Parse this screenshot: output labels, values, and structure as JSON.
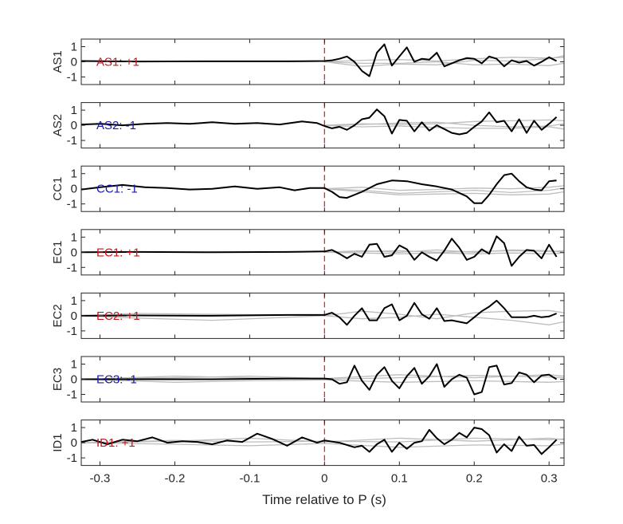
{
  "chart_data": {
    "type": "line",
    "layout": "stacked-subplots",
    "xlabel": "Time relative to P (s)",
    "xlim": [
      -0.325,
      0.32
    ],
    "ylim": [
      -1.5,
      1.5
    ],
    "x_ticks": [
      -0.3,
      -0.2,
      -0.1,
      0,
      0.1,
      0.2,
      0.3
    ],
    "x_tick_labels": [
      "-0.3",
      "-0.2",
      "-0.1",
      "0",
      "0.1",
      "0.2",
      "0.3"
    ],
    "y_ticks": [
      1,
      0,
      -1
    ],
    "y_tick_labels": [
      "1",
      "0",
      "-1"
    ],
    "marker_x": 0,
    "colors": {
      "black_trace": "#000000",
      "gray_traces": "#bdbdbd",
      "marker_line": "#e8282b",
      "positive_label": "#c0171f",
      "negative_label": "#1a1aa6",
      "axes": "#262626"
    },
    "panels": [
      {
        "ylabel": "AS1",
        "annotation": "AS1: +1",
        "polarity": "+1",
        "x": [
          -0.325,
          -0.25,
          -0.15,
          -0.05,
          0,
          0.01,
          0.02,
          0.03,
          0.04,
          0.05,
          0.06,
          0.07,
          0.08,
          0.09,
          0.1,
          0.11,
          0.12,
          0.13,
          0.14,
          0.15,
          0.16,
          0.17,
          0.18,
          0.19,
          0.2,
          0.21,
          0.22,
          0.23,
          0.24,
          0.25,
          0.26,
          0.27,
          0.28,
          0.29,
          0.3,
          0.31
        ],
        "black": [
          0.05,
          0.02,
          0.03,
          0.03,
          0.05,
          0.1,
          0.2,
          0.35,
          0.0,
          -0.6,
          -0.95,
          0.6,
          1.15,
          -0.25,
          0.35,
          0.95,
          0.0,
          0.2,
          0.15,
          0.6,
          -0.3,
          -0.1,
          0.1,
          0.25,
          0.2,
          -0.1,
          0.35,
          0.2,
          -0.3,
          0.1,
          -0.05,
          0.05,
          -0.25,
          0.0,
          0.3,
          0.05
        ],
        "gray": [
          {
            "x": [
              0.0,
              0.05,
              0.1,
              0.15,
              0.2,
              0.25,
              0.3,
              0.32
            ],
            "y": [
              0.0,
              0.1,
              0.15,
              0.05,
              0.2,
              0.3,
              0.25,
              0.3
            ]
          },
          {
            "x": [
              0.0,
              0.05,
              0.1,
              0.15,
              0.2,
              0.25,
              0.3,
              0.32
            ],
            "y": [
              0.0,
              -0.1,
              -0.1,
              0.0,
              -0.2,
              -0.15,
              -0.25,
              -0.1
            ]
          },
          {
            "x": [
              0.0,
              0.05,
              0.1,
              0.15,
              0.2,
              0.25,
              0.3,
              0.32
            ],
            "y": [
              0.0,
              -0.3,
              -0.15,
              -0.2,
              0.1,
              0.05,
              0.2,
              0.4
            ]
          }
        ]
      },
      {
        "ylabel": "AS2",
        "annotation": "AS2: -1",
        "polarity": "-1",
        "x": [
          -0.325,
          -0.3,
          -0.27,
          -0.24,
          -0.21,
          -0.18,
          -0.15,
          -0.12,
          -0.09,
          -0.06,
          -0.03,
          -0.01,
          0,
          0.01,
          0.02,
          0.03,
          0.04,
          0.05,
          0.06,
          0.07,
          0.08,
          0.09,
          0.1,
          0.11,
          0.12,
          0.13,
          0.14,
          0.15,
          0.16,
          0.17,
          0.18,
          0.19,
          0.2,
          0.21,
          0.22,
          0.23,
          0.24,
          0.25,
          0.26,
          0.27,
          0.28,
          0.29,
          0.3,
          0.31
        ],
        "black": [
          0.05,
          0.1,
          0.0,
          0.1,
          0.15,
          0.1,
          0.2,
          0.1,
          0.15,
          0.05,
          0.25,
          0.15,
          -0.05,
          -0.2,
          -0.1,
          -0.3,
          0.0,
          0.4,
          0.5,
          1.05,
          0.6,
          -0.55,
          0.35,
          0.3,
          -0.4,
          0.2,
          -0.35,
          0.0,
          -0.25,
          -0.5,
          -0.6,
          -0.5,
          -0.1,
          0.25,
          0.85,
          0.2,
          0.3,
          -0.4,
          0.4,
          -0.5,
          0.3,
          -0.3,
          0.1,
          0.55
        ],
        "gray": [
          {
            "x": [
              0.0,
              0.05,
              0.1,
              0.15,
              0.2,
              0.25,
              0.3,
              0.32
            ],
            "y": [
              0.0,
              0.05,
              0.15,
              0.2,
              0.0,
              -0.1,
              -0.05,
              0.1
            ]
          },
          {
            "x": [
              0.0,
              0.05,
              0.1,
              0.15,
              0.2,
              0.25,
              0.3,
              0.32
            ],
            "y": [
              0.0,
              -0.1,
              -0.05,
              -0.15,
              -0.2,
              -0.2,
              -0.1,
              -0.25
            ]
          },
          {
            "x": [
              0.0,
              0.05,
              0.1,
              0.15,
              0.2,
              0.25,
              0.3,
              0.32
            ],
            "y": [
              0.0,
              0.1,
              0.05,
              0.1,
              0.25,
              0.3,
              0.35,
              0.3
            ]
          }
        ]
      },
      {
        "ylabel": "CC1",
        "annotation": "CC1: -1",
        "polarity": "-1",
        "x": [
          -0.325,
          -0.3,
          -0.27,
          -0.24,
          -0.21,
          -0.18,
          -0.15,
          -0.12,
          -0.09,
          -0.06,
          -0.04,
          -0.02,
          0,
          0.01,
          0.02,
          0.03,
          0.05,
          0.07,
          0.09,
          0.11,
          0.13,
          0.15,
          0.17,
          0.19,
          0.2,
          0.21,
          0.22,
          0.23,
          0.24,
          0.25,
          0.26,
          0.27,
          0.28,
          0.29,
          0.3,
          0.31
        ],
        "black": [
          -0.05,
          0.1,
          0.25,
          0.1,
          0.05,
          -0.05,
          0.0,
          0.15,
          0.0,
          0.1,
          -0.1,
          0.05,
          0.05,
          -0.2,
          -0.55,
          -0.6,
          -0.2,
          0.3,
          0.55,
          0.5,
          0.3,
          0.15,
          -0.05,
          -0.5,
          -0.95,
          -0.95,
          -0.4,
          0.3,
          0.9,
          1.0,
          0.5,
          0.1,
          -0.05,
          -0.1,
          0.5,
          0.55
        ],
        "gray": [
          {
            "x": [
              0.0,
              0.05,
              0.1,
              0.15,
              0.2,
              0.25,
              0.3,
              0.32
            ],
            "y": [
              0.0,
              -0.1,
              -0.3,
              -0.2,
              -0.1,
              -0.25,
              -0.1,
              0.05
            ]
          },
          {
            "x": [
              0.0,
              0.05,
              0.1,
              0.15,
              0.2,
              0.25,
              0.3,
              0.32
            ],
            "y": [
              0.0,
              -0.2,
              -0.4,
              -0.35,
              -0.3,
              -0.4,
              -0.35,
              -0.2
            ]
          },
          {
            "x": [
              0.0,
              0.05,
              0.1,
              0.15,
              0.2,
              0.25,
              0.3,
              0.32
            ],
            "y": [
              0.0,
              0.1,
              -0.1,
              -0.05,
              0.05,
              0.0,
              0.1,
              0.2
            ]
          }
        ]
      },
      {
        "ylabel": "EC1",
        "annotation": "EC1: +1",
        "polarity": "+1",
        "x": [
          -0.325,
          -0.25,
          -0.15,
          -0.05,
          0,
          0.01,
          0.02,
          0.03,
          0.04,
          0.05,
          0.06,
          0.07,
          0.08,
          0.09,
          0.1,
          0.11,
          0.12,
          0.13,
          0.14,
          0.15,
          0.16,
          0.17,
          0.18,
          0.19,
          0.2,
          0.21,
          0.22,
          0.23,
          0.24,
          0.25,
          0.26,
          0.27,
          0.28,
          0.29,
          0.3,
          0.31
        ],
        "black": [
          0.0,
          0.02,
          0.0,
          0.02,
          0.05,
          0.15,
          -0.1,
          -0.4,
          -0.1,
          -0.3,
          0.5,
          0.55,
          -0.3,
          -0.2,
          0.45,
          0.2,
          -0.5,
          0.0,
          -0.3,
          -0.55,
          0.1,
          0.9,
          0.3,
          -0.5,
          -0.3,
          0.2,
          -0.1,
          1.05,
          0.6,
          -0.9,
          -0.3,
          0.15,
          0.1,
          -0.4,
          0.5,
          -0.3
        ],
        "gray": [
          {
            "x": [
              0.0,
              0.05,
              0.1,
              0.15,
              0.2,
              0.25,
              0.3,
              0.32
            ],
            "y": [
              0.0,
              0.05,
              0.1,
              0.0,
              0.05,
              0.1,
              0.05,
              0.1
            ]
          },
          {
            "x": [
              0.0,
              0.05,
              0.1,
              0.15,
              0.2,
              0.25,
              0.3,
              0.32
            ],
            "y": [
              0.0,
              -0.05,
              -0.1,
              -0.05,
              -0.1,
              -0.05,
              -0.1,
              -0.05
            ]
          },
          {
            "x": [
              0.0,
              0.05,
              0.1,
              0.15,
              0.2,
              0.25,
              0.3,
              0.32
            ],
            "y": [
              0.0,
              0.1,
              0.0,
              0.15,
              0.0,
              0.15,
              0.1,
              0.0
            ]
          }
        ]
      },
      {
        "ylabel": "EC2",
        "annotation": "EC2: +1",
        "polarity": "+1",
        "x": [
          -0.325,
          -0.25,
          -0.15,
          -0.05,
          0,
          0.01,
          0.02,
          0.03,
          0.04,
          0.05,
          0.06,
          0.07,
          0.08,
          0.09,
          0.1,
          0.11,
          0.12,
          0.13,
          0.14,
          0.15,
          0.16,
          0.17,
          0.18,
          0.19,
          0.2,
          0.21,
          0.22,
          0.23,
          0.24,
          0.25,
          0.26,
          0.27,
          0.28,
          0.29,
          0.3,
          0.31
        ],
        "black": [
          0.0,
          0.02,
          0.0,
          0.05,
          0.05,
          0.2,
          -0.1,
          -0.6,
          0.0,
          0.5,
          -0.3,
          -0.3,
          0.5,
          0.75,
          -0.3,
          0.0,
          0.85,
          0.1,
          -0.2,
          0.5,
          -0.35,
          -0.3,
          -0.4,
          -0.5,
          -0.1,
          0.3,
          0.6,
          1.0,
          0.5,
          -0.1,
          -0.1,
          -0.1,
          0.0,
          -0.1,
          -0.05,
          0.15
        ],
        "gray": [
          {
            "x": [
              -0.325,
              -0.25,
              -0.15,
              -0.05,
              0.0
            ],
            "y": [
              0.0,
              -0.15,
              -0.3,
              -0.1,
              0.0
            ]
          },
          {
            "x": [
              -0.325,
              -0.25,
              -0.15,
              -0.05,
              0.0
            ],
            "y": [
              0.0,
              0.15,
              0.1,
              0.05,
              0.0
            ]
          },
          {
            "x": [
              0.0,
              0.05,
              0.1,
              0.15,
              0.2,
              0.25,
              0.3,
              0.32
            ],
            "y": [
              0.0,
              0.3,
              0.1,
              -0.2,
              0.2,
              0.3,
              0.35,
              0.2
            ]
          },
          {
            "x": [
              0.0,
              0.05,
              0.1,
              0.15,
              0.2,
              0.25,
              0.3,
              0.32
            ],
            "y": [
              0.0,
              -0.2,
              -0.1,
              0.1,
              -0.1,
              -0.3,
              -0.6,
              -0.4
            ]
          }
        ]
      },
      {
        "ylabel": "EC3",
        "annotation": "EC3: -1",
        "polarity": "-1",
        "x": [
          -0.325,
          -0.25,
          -0.15,
          -0.05,
          0,
          0.01,
          0.02,
          0.03,
          0.04,
          0.05,
          0.06,
          0.07,
          0.08,
          0.09,
          0.1,
          0.11,
          0.12,
          0.13,
          0.14,
          0.15,
          0.16,
          0.17,
          0.18,
          0.19,
          0.2,
          0.21,
          0.22,
          0.23,
          0.24,
          0.25,
          0.26,
          0.27,
          0.28,
          0.29,
          0.3,
          0.31
        ],
        "black": [
          0.0,
          0.0,
          0.0,
          0.05,
          0.05,
          0.0,
          -0.3,
          -0.2,
          0.9,
          -0.1,
          -0.7,
          0.3,
          0.8,
          -0.1,
          -0.6,
          0.2,
          0.75,
          -0.3,
          0.2,
          1.0,
          -0.5,
          0.0,
          0.3,
          0.1,
          -1.0,
          -0.85,
          0.8,
          0.9,
          -0.35,
          -0.25,
          0.45,
          0.3,
          -0.2,
          0.25,
          0.3,
          0.0
        ],
        "gray": [
          {
            "x": [
              -0.325,
              -0.2,
              -0.1,
              0.0,
              0.1,
              0.2,
              0.3,
              0.32
            ],
            "y": [
              0.0,
              0.1,
              0.2,
              0.05,
              0.3,
              0.1,
              0.3,
              0.2
            ]
          },
          {
            "x": [
              -0.325,
              -0.2,
              -0.1,
              0.0,
              0.1,
              0.2,
              0.3,
              0.32
            ],
            "y": [
              0.0,
              -0.2,
              -0.1,
              -0.05,
              -0.2,
              -0.1,
              -0.2,
              -0.15
            ]
          },
          {
            "x": [
              -0.325,
              -0.2,
              -0.1,
              0.0,
              0.1,
              0.2,
              0.3,
              0.32
            ],
            "y": [
              0.0,
              0.2,
              0.1,
              0.0,
              0.1,
              0.25,
              0.15,
              0.1
            ]
          }
        ]
      },
      {
        "ylabel": "ID1",
        "annotation": "ID1: +1",
        "polarity": "+1",
        "x": [
          -0.325,
          -0.31,
          -0.29,
          -0.27,
          -0.25,
          -0.23,
          -0.21,
          -0.19,
          -0.17,
          -0.15,
          -0.13,
          -0.11,
          -0.09,
          -0.07,
          -0.05,
          -0.03,
          -0.01,
          0,
          0.02,
          0.04,
          0.05,
          0.06,
          0.07,
          0.08,
          0.09,
          0.1,
          0.11,
          0.12,
          0.13,
          0.14,
          0.15,
          0.16,
          0.17,
          0.18,
          0.19,
          0.2,
          0.21,
          0.22,
          0.23,
          0.24,
          0.25,
          0.26,
          0.27,
          0.28,
          0.29,
          0.3,
          0.31
        ],
        "black": [
          0.05,
          0.2,
          -0.1,
          0.2,
          0.1,
          0.35,
          0.0,
          0.1,
          0.05,
          -0.1,
          0.15,
          0.05,
          0.6,
          0.25,
          -0.2,
          0.35,
          0.0,
          0.15,
          0.0,
          -0.3,
          -0.2,
          -0.6,
          -0.1,
          0.2,
          -0.6,
          0.0,
          -0.4,
          0.0,
          0.1,
          0.85,
          0.3,
          -0.1,
          0.2,
          0.65,
          0.35,
          1.0,
          0.9,
          0.5,
          -0.65,
          -0.1,
          -0.55,
          0.4,
          -0.2,
          -0.15,
          -0.75,
          -0.3,
          0.2
        ],
        "gray": [
          {
            "x": [
              -0.325,
              -0.2,
              -0.1,
              0.0,
              0.1,
              0.2,
              0.3,
              0.32
            ],
            "y": [
              0.0,
              0.1,
              0.3,
              0.05,
              0.3,
              0.1,
              0.3,
              0.2
            ]
          },
          {
            "x": [
              -0.325,
              -0.2,
              -0.1,
              0.0,
              0.1,
              0.2,
              0.3,
              0.32
            ],
            "y": [
              0.0,
              -0.1,
              -0.2,
              -0.05,
              -0.3,
              -0.15,
              -0.2,
              -0.1
            ]
          },
          {
            "x": [
              -0.325,
              -0.2,
              -0.1,
              0.0,
              0.1,
              0.2,
              0.3,
              0.32
            ],
            "y": [
              0.0,
              0.15,
              0.05,
              0.1,
              0.05,
              0.3,
              0.2,
              0.25
            ]
          }
        ]
      }
    ]
  }
}
